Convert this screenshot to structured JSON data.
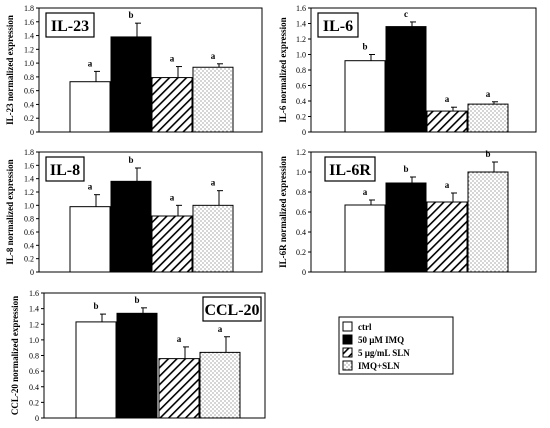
{
  "colors": {
    "ctrl": "#ffffff",
    "imq": "#000000",
    "sln": "hatch",
    "imq_sln": "dots",
    "stroke": "#000000"
  },
  "legend": {
    "items": [
      {
        "key": "ctrl",
        "label": "ctrl"
      },
      {
        "key": "imq",
        "label": "50 µM IMQ"
      },
      {
        "key": "sln",
        "label": "5 µg/mL SLN"
      },
      {
        "key": "imq_sln",
        "label": "IMQ+SLN"
      }
    ]
  },
  "chart_data": [
    {
      "type": "bar",
      "title": "IL-23",
      "ylabel": "IL-23 normalized expression",
      "ylim": [
        0,
        1.8
      ],
      "yticks": [
        0,
        0.2,
        0.4,
        0.6,
        0.8,
        1.0,
        1.2,
        1.4,
        1.6,
        1.8
      ],
      "yticklabels": [
        "0",
        "0.2",
        "0.4",
        "0.6",
        "0.8",
        "1.0",
        "1.2",
        "1.4",
        "1.6",
        "1.8"
      ],
      "categories": [
        "ctrl",
        "50 µM IMQ",
        "5 µg/mL SLN",
        "IMQ+SLN"
      ],
      "values": [
        0.73,
        1.38,
        0.79,
        0.94
      ],
      "errors": [
        0.15,
        0.2,
        0.16,
        0.05
      ],
      "letters": [
        "a",
        "b",
        "a",
        "a"
      ]
    },
    {
      "type": "bar",
      "title": "IL-6",
      "ylabel": "IL-6 normalized expression",
      "ylim": [
        0,
        1.6
      ],
      "yticks": [
        0,
        0.2,
        0.4,
        0.6,
        0.8,
        1.0,
        1.2,
        1.4,
        1.6
      ],
      "yticklabels": [
        "0",
        "0.2",
        "0.4",
        "0.6",
        "0.8",
        "1.0",
        "1.2",
        "1.4",
        "1.6"
      ],
      "categories": [
        "ctrl",
        "50 µM IMQ",
        "5 µg/mL SLN",
        "IMQ+SLN"
      ],
      "values": [
        0.92,
        1.36,
        0.27,
        0.36
      ],
      "errors": [
        0.08,
        0.06,
        0.05,
        0.03
      ],
      "letters": [
        "b",
        "c",
        "a",
        "a"
      ]
    },
    {
      "type": "bar",
      "title": "IL-8",
      "ylabel": "IL-8 normalized expression",
      "ylim": [
        0,
        1.8
      ],
      "yticks": [
        0,
        0.2,
        0.4,
        0.6,
        0.8,
        1.0,
        1.2,
        1.4,
        1.6,
        1.8
      ],
      "yticklabels": [
        "0",
        "0.2",
        "0.4",
        "0.6",
        "0.8",
        "1.0",
        "1.2",
        "1.4",
        "1.6",
        "1.8"
      ],
      "categories": [
        "ctrl",
        "50 µM IMQ",
        "5 µg/mL SLN",
        "IMQ+SLN"
      ],
      "values": [
        0.98,
        1.36,
        0.84,
        1.0
      ],
      "errors": [
        0.18,
        0.2,
        0.16,
        0.22
      ],
      "letters": [
        "a",
        "b",
        "a",
        "a"
      ]
    },
    {
      "type": "bar",
      "title": "IL-6R",
      "ylabel": "IL-6R normalized expression",
      "ylim": [
        0,
        1.2
      ],
      "yticks": [
        0,
        0.2,
        0.4,
        0.6,
        0.8,
        1.0,
        1.2
      ],
      "yticklabels": [
        "0",
        "0.2",
        "0.4",
        "0.6",
        "0.8",
        "1.0",
        "1.2"
      ],
      "categories": [
        "ctrl",
        "50 µM IMQ",
        "5 µg/mL SLN",
        "IMQ+SLN"
      ],
      "values": [
        0.67,
        0.89,
        0.7,
        1.0
      ],
      "errors": [
        0.05,
        0.06,
        0.09,
        0.1
      ],
      "letters": [
        "a",
        "b",
        "a",
        "b"
      ]
    },
    {
      "type": "bar",
      "title": "CCL-20",
      "ylabel": "CCL-20 normalized expression",
      "ylim": [
        0,
        1.6
      ],
      "yticks": [
        0,
        0.2,
        0.4,
        0.6,
        0.8,
        1.0,
        1.2,
        1.4,
        1.6
      ],
      "yticklabels": [
        "0",
        "0.2",
        "0.4",
        "0.6",
        "0.8",
        "1.0",
        "1.2",
        "1.4",
        "1.6"
      ],
      "categories": [
        "ctrl",
        "50 µM IMQ",
        "5 µg/mL SLN",
        "IMQ+SLN"
      ],
      "values": [
        1.23,
        1.34,
        0.76,
        0.84
      ],
      "errors": [
        0.1,
        0.07,
        0.15,
        0.2
      ],
      "letters": [
        "b",
        "b",
        "a",
        "a"
      ]
    }
  ]
}
